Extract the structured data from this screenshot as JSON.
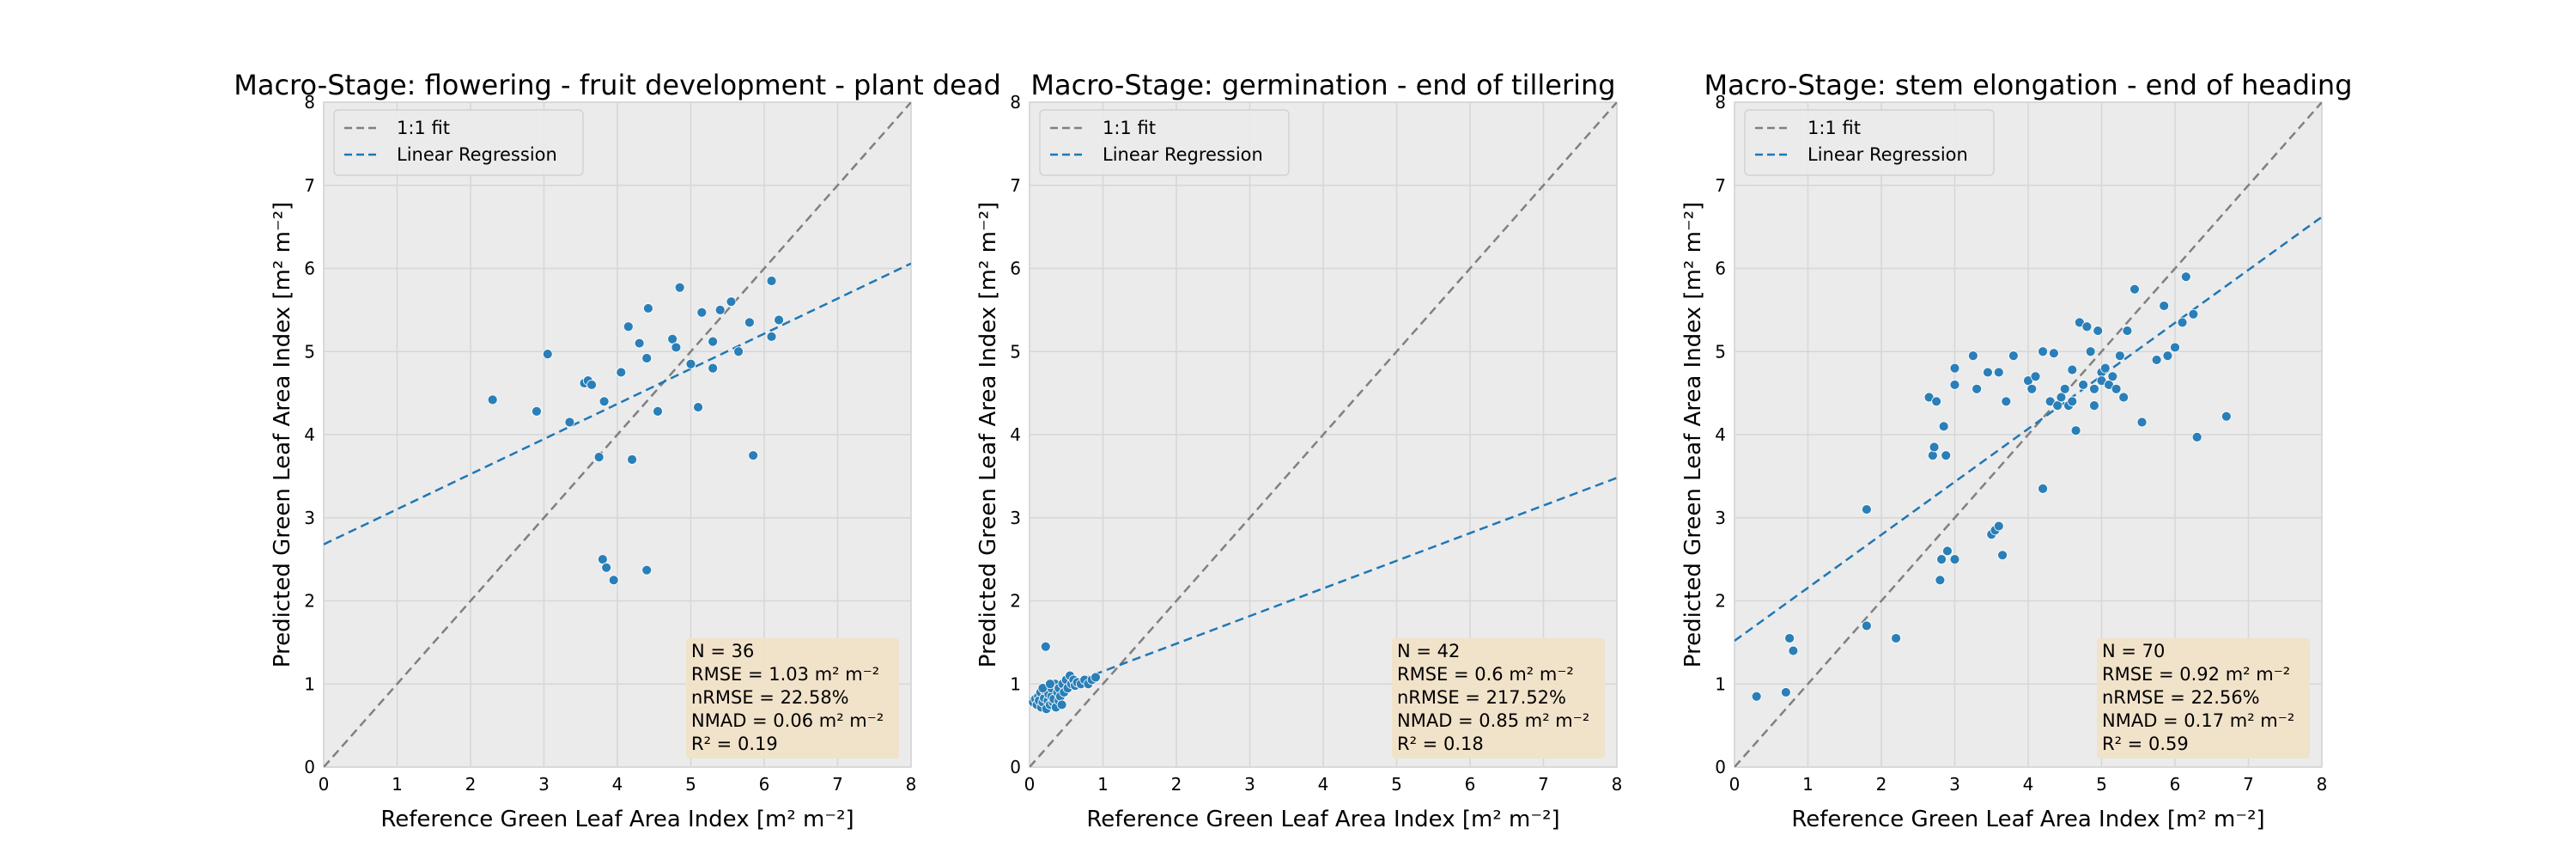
{
  "chart_data": [
    {
      "type": "scatter",
      "title": "Macro-Stage: flowering - fruit development - plant dead",
      "xlabel": "Reference Green Leaf Area Index [m² m⁻²]",
      "ylabel": "Predicted Green Leaf Area Index [m² m⁻²]",
      "xlim": [
        0,
        8
      ],
      "ylim": [
        0,
        8
      ],
      "xticks": [
        "0",
        "1",
        "2",
        "3",
        "4",
        "5",
        "6",
        "7",
        "8"
      ],
      "yticks": [
        "0",
        "1",
        "2",
        "3",
        "4",
        "5",
        "6",
        "7",
        "8"
      ],
      "grid": true,
      "legend": {
        "position": "top-left",
        "entries": [
          "1:1 fit",
          "Linear Regression"
        ]
      },
      "one_to_one": [
        [
          0,
          0
        ],
        [
          8,
          8
        ]
      ],
      "regression": [
        [
          0,
          2.68
        ],
        [
          8,
          6.06
        ]
      ],
      "stats": [
        "N = 36",
        "RMSE = 1.03 m² m⁻²",
        "nRMSE = 22.58%",
        "NMAD = 0.06 m² m⁻²",
        "R² = 0.19"
      ],
      "points": [
        [
          2.3,
          4.42
        ],
        [
          2.9,
          4.28
        ],
        [
          3.05,
          4.97
        ],
        [
          3.35,
          4.15
        ],
        [
          3.55,
          4.62
        ],
        [
          3.6,
          4.65
        ],
        [
          3.65,
          4.6
        ],
        [
          3.75,
          3.73
        ],
        [
          3.82,
          4.4
        ],
        [
          3.8,
          2.5
        ],
        [
          3.85,
          2.4
        ],
        [
          3.95,
          2.25
        ],
        [
          4.05,
          4.75
        ],
        [
          4.15,
          5.3
        ],
        [
          4.2,
          3.7
        ],
        [
          4.3,
          5.1
        ],
        [
          4.4,
          4.92
        ],
        [
          4.42,
          5.52
        ],
        [
          4.4,
          2.37
        ],
        [
          4.55,
          4.28
        ],
        [
          4.75,
          5.15
        ],
        [
          4.8,
          5.05
        ],
        [
          4.85,
          5.77
        ],
        [
          5.0,
          4.85
        ],
        [
          5.1,
          4.33
        ],
        [
          5.15,
          5.47
        ],
        [
          5.3,
          5.12
        ],
        [
          5.3,
          4.8
        ],
        [
          5.4,
          5.5
        ],
        [
          5.55,
          5.6
        ],
        [
          5.65,
          5.0
        ],
        [
          5.8,
          5.35
        ],
        [
          5.85,
          3.75
        ],
        [
          6.1,
          5.85
        ],
        [
          6.1,
          5.18
        ],
        [
          6.2,
          5.38
        ]
      ]
    },
    {
      "type": "scatter",
      "title": "Macro-Stage: germination - end of tillering",
      "xlabel": "Reference Green Leaf Area Index [m² m⁻²]",
      "ylabel": "Predicted Green Leaf Area Index [m² m⁻²]",
      "xlim": [
        0,
        8
      ],
      "ylim": [
        0,
        8
      ],
      "xticks": [
        "0",
        "1",
        "2",
        "3",
        "4",
        "5",
        "6",
        "7",
        "8"
      ],
      "yticks": [
        "0",
        "1",
        "2",
        "3",
        "4",
        "5",
        "6",
        "7",
        "8"
      ],
      "grid": true,
      "legend": {
        "position": "top-left",
        "entries": [
          "1:1 fit",
          "Linear Regression"
        ]
      },
      "one_to_one": [
        [
          0,
          0
        ],
        [
          8,
          8
        ]
      ],
      "regression": [
        [
          0,
          0.82
        ],
        [
          8,
          3.48
        ]
      ],
      "stats": [
        "N = 42",
        "RMSE = 0.6 m² m⁻²",
        "nRMSE = 217.52%",
        "NMAD = 0.85 m² m⁻²",
        "R² = 0.18"
      ],
      "points": [
        [
          0.05,
          0.78
        ],
        [
          0.08,
          0.82
        ],
        [
          0.1,
          0.75
        ],
        [
          0.12,
          0.85
        ],
        [
          0.13,
          0.8
        ],
        [
          0.15,
          0.9
        ],
        [
          0.16,
          0.72
        ],
        [
          0.18,
          0.78
        ],
        [
          0.2,
          0.83
        ],
        [
          0.2,
          0.93
        ],
        [
          0.22,
          1.45
        ],
        [
          0.23,
          0.7
        ],
        [
          0.25,
          0.8
        ],
        [
          0.26,
          0.88
        ],
        [
          0.28,
          0.75
        ],
        [
          0.3,
          0.85
        ],
        [
          0.3,
          0.95
        ],
        [
          0.32,
          0.78
        ],
        [
          0.33,
          0.82
        ],
        [
          0.35,
          1.0
        ],
        [
          0.36,
          0.72
        ],
        [
          0.38,
          0.9
        ],
        [
          0.4,
          0.8
        ],
        [
          0.4,
          0.95
        ],
        [
          0.42,
          0.85
        ],
        [
          0.44,
          0.75
        ],
        [
          0.45,
          1.0
        ],
        [
          0.47,
          0.9
        ],
        [
          0.5,
          1.05
        ],
        [
          0.52,
          0.95
        ],
        [
          0.55,
          1.1
        ],
        [
          0.57,
          1.0
        ],
        [
          0.6,
          1.05
        ],
        [
          0.62,
          0.98
        ],
        [
          0.65,
          1.02
        ],
        [
          0.7,
          1.0
        ],
        [
          0.75,
          1.05
        ],
        [
          0.8,
          1.0
        ],
        [
          0.85,
          1.05
        ],
        [
          0.9,
          1.08
        ],
        [
          0.18,
          0.95
        ],
        [
          0.28,
          1.0
        ]
      ]
    },
    {
      "type": "scatter",
      "title": "Macro-Stage: stem elongation - end of heading",
      "xlabel": "Reference Green Leaf Area Index [m² m⁻²]",
      "ylabel": "Predicted Green Leaf Area Index [m² m⁻²]",
      "xlim": [
        0,
        8
      ],
      "ylim": [
        0,
        8
      ],
      "xticks": [
        "0",
        "1",
        "2",
        "3",
        "4",
        "5",
        "6",
        "7",
        "8"
      ],
      "yticks": [
        "0",
        "1",
        "2",
        "3",
        "4",
        "5",
        "6",
        "7",
        "8"
      ],
      "grid": true,
      "legend": {
        "position": "top-left",
        "entries": [
          "1:1 fit",
          "Linear Regression"
        ]
      },
      "one_to_one": [
        [
          0,
          0
        ],
        [
          8,
          8
        ]
      ],
      "regression": [
        [
          0,
          1.52
        ],
        [
          8,
          6.62
        ]
      ],
      "stats": [
        "N = 70",
        "RMSE = 0.92 m² m⁻²",
        "nRMSE = 22.56%",
        "NMAD = 0.17 m² m⁻²",
        "R² = 0.59"
      ],
      "points": [
        [
          0.3,
          0.85
        ],
        [
          0.7,
          0.9
        ],
        [
          0.75,
          1.55
        ],
        [
          0.8,
          1.4
        ],
        [
          1.8,
          3.1
        ],
        [
          1.8,
          1.7
        ],
        [
          2.2,
          1.55
        ],
        [
          2.65,
          4.45
        ],
        [
          2.7,
          3.75
        ],
        [
          2.72,
          3.85
        ],
        [
          2.75,
          4.4
        ],
        [
          2.8,
          2.25
        ],
        [
          2.82,
          2.5
        ],
        [
          2.85,
          4.1
        ],
        [
          2.88,
          3.75
        ],
        [
          2.9,
          2.6
        ],
        [
          3.0,
          2.5
        ],
        [
          3.0,
          4.6
        ],
        [
          3.0,
          4.8
        ],
        [
          3.25,
          4.95
        ],
        [
          3.3,
          4.55
        ],
        [
          3.45,
          4.75
        ],
        [
          3.5,
          2.8
        ],
        [
          3.55,
          2.85
        ],
        [
          3.6,
          2.9
        ],
        [
          3.6,
          4.75
        ],
        [
          3.65,
          2.55
        ],
        [
          3.7,
          4.4
        ],
        [
          3.8,
          4.95
        ],
        [
          4.0,
          4.65
        ],
        [
          4.05,
          4.55
        ],
        [
          4.1,
          4.7
        ],
        [
          4.2,
          5.0
        ],
        [
          4.2,
          3.35
        ],
        [
          4.3,
          4.4
        ],
        [
          4.35,
          4.98
        ],
        [
          4.4,
          4.35
        ],
        [
          4.45,
          4.45
        ],
        [
          4.5,
          4.55
        ],
        [
          4.55,
          4.35
        ],
        [
          4.6,
          4.4
        ],
        [
          4.6,
          4.78
        ],
        [
          4.65,
          4.05
        ],
        [
          4.7,
          5.35
        ],
        [
          4.75,
          4.6
        ],
        [
          4.8,
          5.3
        ],
        [
          4.85,
          5.0
        ],
        [
          4.9,
          4.55
        ],
        [
          4.9,
          4.35
        ],
        [
          4.95,
          5.25
        ],
        [
          5.0,
          4.75
        ],
        [
          5.0,
          4.65
        ],
        [
          5.05,
          4.8
        ],
        [
          5.1,
          4.6
        ],
        [
          5.15,
          4.7
        ],
        [
          5.2,
          4.55
        ],
        [
          5.25,
          4.95
        ],
        [
          5.3,
          4.45
        ],
        [
          5.35,
          5.25
        ],
        [
          5.45,
          5.75
        ],
        [
          5.55,
          4.15
        ],
        [
          5.75,
          4.9
        ],
        [
          5.85,
          5.55
        ],
        [
          5.9,
          4.95
        ],
        [
          6.0,
          5.05
        ],
        [
          6.1,
          5.35
        ],
        [
          6.15,
          5.9
        ],
        [
          6.25,
          5.45
        ],
        [
          6.3,
          3.97
        ],
        [
          6.7,
          4.22
        ]
      ]
    }
  ]
}
